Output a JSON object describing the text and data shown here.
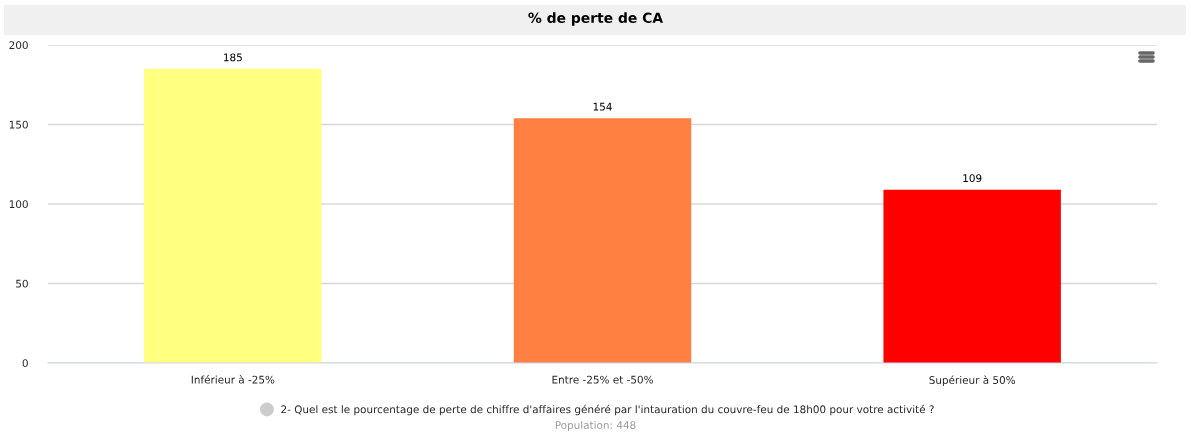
{
  "chart_data": {
    "type": "bar",
    "title": "% de perte de CA",
    "categories": [
      "Inférieur à -25%",
      "Entre -25% et -50%",
      "Supérieur à 50%"
    ],
    "series": [
      {
        "name": "2- Quel est le pourcentage de perte de chiffre d'affaires généré par l'intauration du couvre-feu de 18h00 pour votre activité ?",
        "color": "#cccccc",
        "colors": [
          "#ffff80",
          "#ff8040",
          "#ff0000"
        ],
        "values": [
          185,
          154,
          109
        ]
      }
    ],
    "ylim": [
      0,
      200
    ],
    "yticks": [
      0,
      50,
      100,
      150,
      200
    ],
    "grid": "y",
    "legend": "bottom",
    "data_labels": true,
    "annotations": [
      "Population: 448"
    ]
  }
}
